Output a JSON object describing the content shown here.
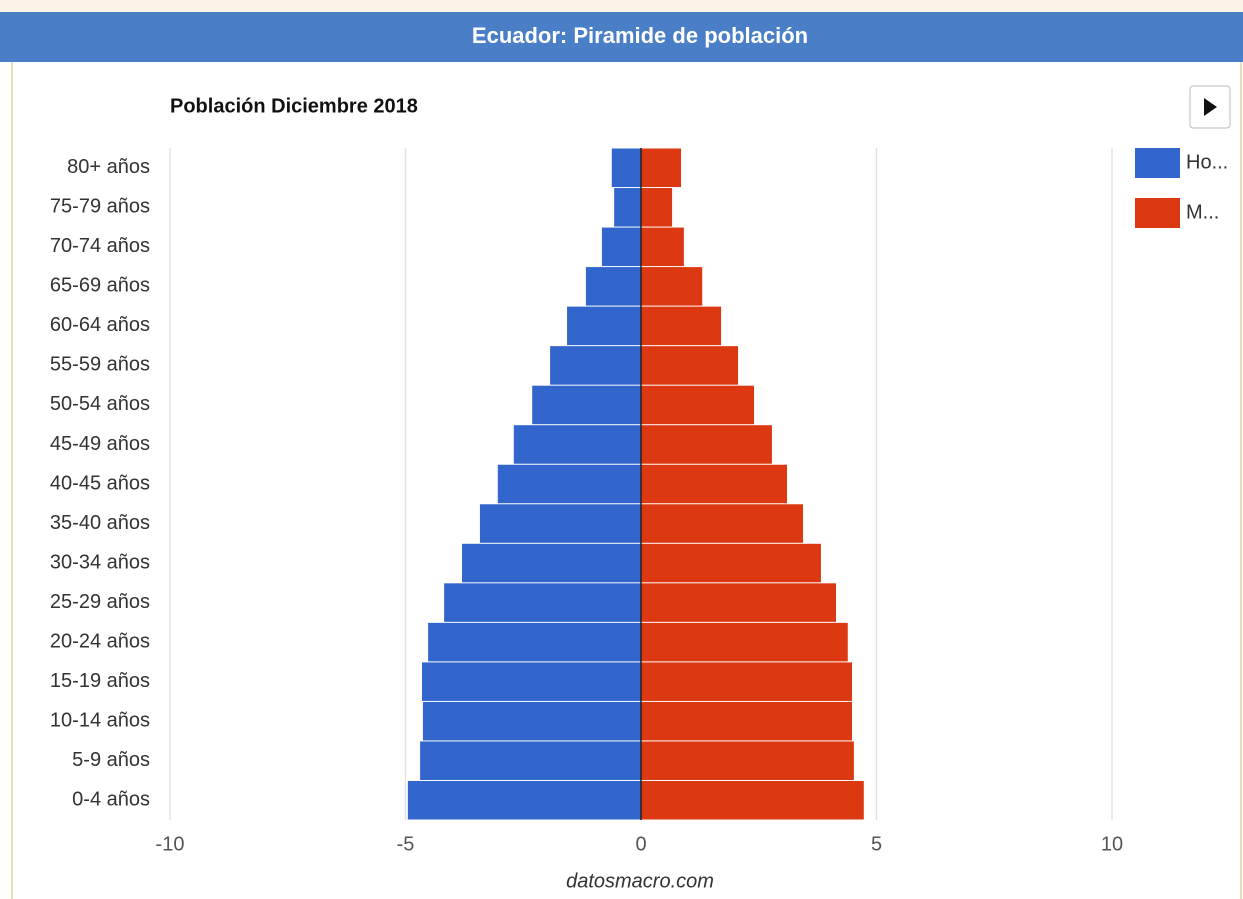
{
  "chart_data": {
    "type": "bar",
    "orientation": "horizontal",
    "stacked": true,
    "title": "Ecuador: Piramide de población",
    "subtitle": "Población Diciembre 2018",
    "source": "datosmacro.com",
    "categories": [
      "80+ años",
      "75-79 años",
      "70-74 años",
      "65-69 años",
      "60-64 años",
      "55-59 años",
      "50-54 años",
      "45-49 años",
      "40-45 años",
      "35-40 años",
      "30-34 años",
      "25-29 años",
      "20-24 años",
      "15-19 años",
      "10-14 años",
      "5-9 años",
      "0-4 años"
    ],
    "series": [
      {
        "name": "Ho...",
        "color": "#3366cc",
        "values": [
          -0.62,
          -0.57,
          -0.83,
          -1.17,
          -1.57,
          -1.93,
          -2.31,
          -2.7,
          -3.04,
          -3.42,
          -3.8,
          -4.18,
          -4.52,
          -4.65,
          -4.63,
          -4.69,
          -4.95
        ]
      },
      {
        "name": "M...",
        "color": "#dc3912",
        "values": [
          0.85,
          0.66,
          0.91,
          1.3,
          1.7,
          2.06,
          2.4,
          2.78,
          3.1,
          3.44,
          3.82,
          4.14,
          4.39,
          4.48,
          4.48,
          4.52,
          4.73
        ]
      }
    ],
    "xlim": [
      -10,
      10
    ],
    "xticks": [
      -10,
      -5,
      0,
      5,
      10
    ],
    "grid": true,
    "legend": "right"
  }
}
